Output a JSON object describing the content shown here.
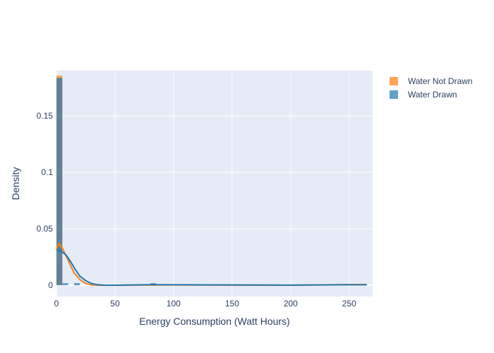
{
  "chart_data": {
    "type": "bar",
    "title": "",
    "xlabel": "Energy Consumption (Watt Hours)",
    "ylabel": "Density",
    "xlim": [
      0,
      270
    ],
    "ylim": [
      -0.01,
      0.19
    ],
    "x_ticks": [
      0,
      50,
      100,
      150,
      200,
      250
    ],
    "y_ticks": [
      0,
      0.05,
      0.1,
      0.15
    ],
    "x_tick_labels": [
      "0",
      "50",
      "100",
      "150",
      "200",
      "250"
    ],
    "y_tick_labels": [
      "0",
      "0.05",
      "0.1",
      "0.15"
    ],
    "grid": true,
    "legend_position": "top-right",
    "bin_width": 5,
    "series": [
      {
        "name": "Water Not Drawn",
        "color": "#ff7f0e",
        "histogram": [
          {
            "x0": 0,
            "x1": 5,
            "y": 0.1855
          },
          {
            "x0": 250,
            "x1": 255,
            "y": 0.001
          },
          {
            "x0": 255,
            "x1": 260,
            "y": 0.001
          },
          {
            "x0": 260,
            "x1": 265,
            "y": 0.0008
          }
        ],
        "kde": [
          [
            0,
            0.032
          ],
          [
            2,
            0.037
          ],
          [
            5,
            0.033
          ],
          [
            10,
            0.022
          ],
          [
            15,
            0.011
          ],
          [
            20,
            0.005
          ],
          [
            25,
            0.0015
          ],
          [
            30,
            0.0003
          ],
          [
            35,
            0.0
          ],
          [
            50,
            0.0
          ],
          [
            100,
            0.0002
          ],
          [
            150,
            0.0001
          ],
          [
            200,
            0.0
          ],
          [
            230,
            0.0003
          ],
          [
            250,
            0.0006
          ],
          [
            265,
            0.0006
          ]
        ]
      },
      {
        "name": "Water Drawn",
        "color": "#1f77b4",
        "histogram": [
          {
            "x0": 0,
            "x1": 5,
            "y": 0.1835
          },
          {
            "x0": 5,
            "x1": 10,
            "y": 0.0018
          },
          {
            "x0": 15,
            "x1": 20,
            "y": 0.0018
          },
          {
            "x0": 80,
            "x1": 85,
            "y": 0.0018
          },
          {
            "x0": 110,
            "x1": 115,
            "y": 0.0005
          },
          {
            "x0": 150,
            "x1": 155,
            "y": 0.0005
          },
          {
            "x0": 235,
            "x1": 240,
            "y": 0.0005
          }
        ],
        "kde": [
          [
            0,
            0.031
          ],
          [
            3,
            0.031
          ],
          [
            8,
            0.027
          ],
          [
            12,
            0.021
          ],
          [
            16,
            0.014
          ],
          [
            20,
            0.008
          ],
          [
            25,
            0.004
          ],
          [
            30,
            0.0015
          ],
          [
            35,
            0.0005
          ],
          [
            40,
            0.0001
          ],
          [
            50,
            0.0
          ],
          [
            80,
            0.0005
          ],
          [
            100,
            0.0004
          ],
          [
            150,
            0.0002
          ],
          [
            200,
            0.0001
          ],
          [
            250,
            0.0004
          ],
          [
            265,
            0.0004
          ]
        ]
      }
    ]
  }
}
